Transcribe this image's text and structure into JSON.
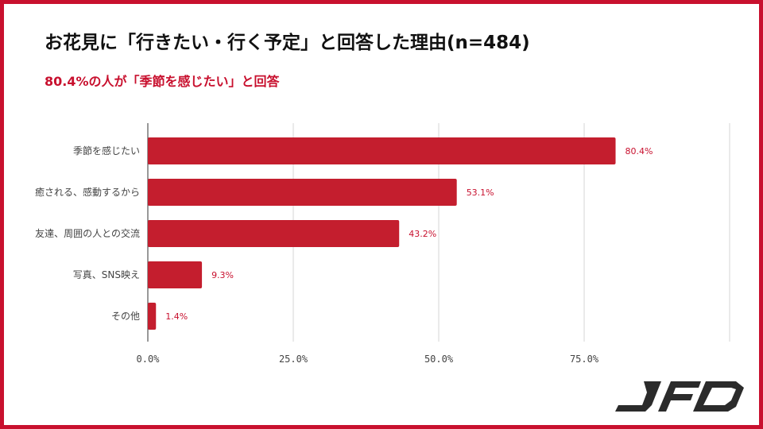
{
  "header": {
    "title": "お花見に「行きたい・行く予定」と回答した理由(n=484)",
    "subtitle": "80.4%の人が「季節を感じたい」と回答"
  },
  "colors": {
    "accent": "#c8102e",
    "bar": "#c41e2e",
    "grid": "#d6d6d6",
    "text": "#444444"
  },
  "logo": {
    "text": "JFD"
  },
  "chart_data": {
    "type": "bar",
    "orientation": "horizontal",
    "categories": [
      "季節を感じたい",
      "癒される、感動するから",
      "友達、周囲の人との交流",
      "写真、SNS映え",
      "その他"
    ],
    "values": [
      80.4,
      53.1,
      43.2,
      9.3,
      1.4
    ],
    "value_labels": [
      "80.4%",
      "53.1%",
      "43.2%",
      "9.3%",
      "1.4%"
    ],
    "xlim": [
      0,
      100
    ],
    "x_ticks": [
      0,
      25,
      50,
      75,
      100
    ],
    "x_tick_labels": [
      "0.0%",
      "25.0%",
      "50.0%",
      "75.0%",
      ""
    ],
    "grid": true,
    "legend": "none"
  }
}
